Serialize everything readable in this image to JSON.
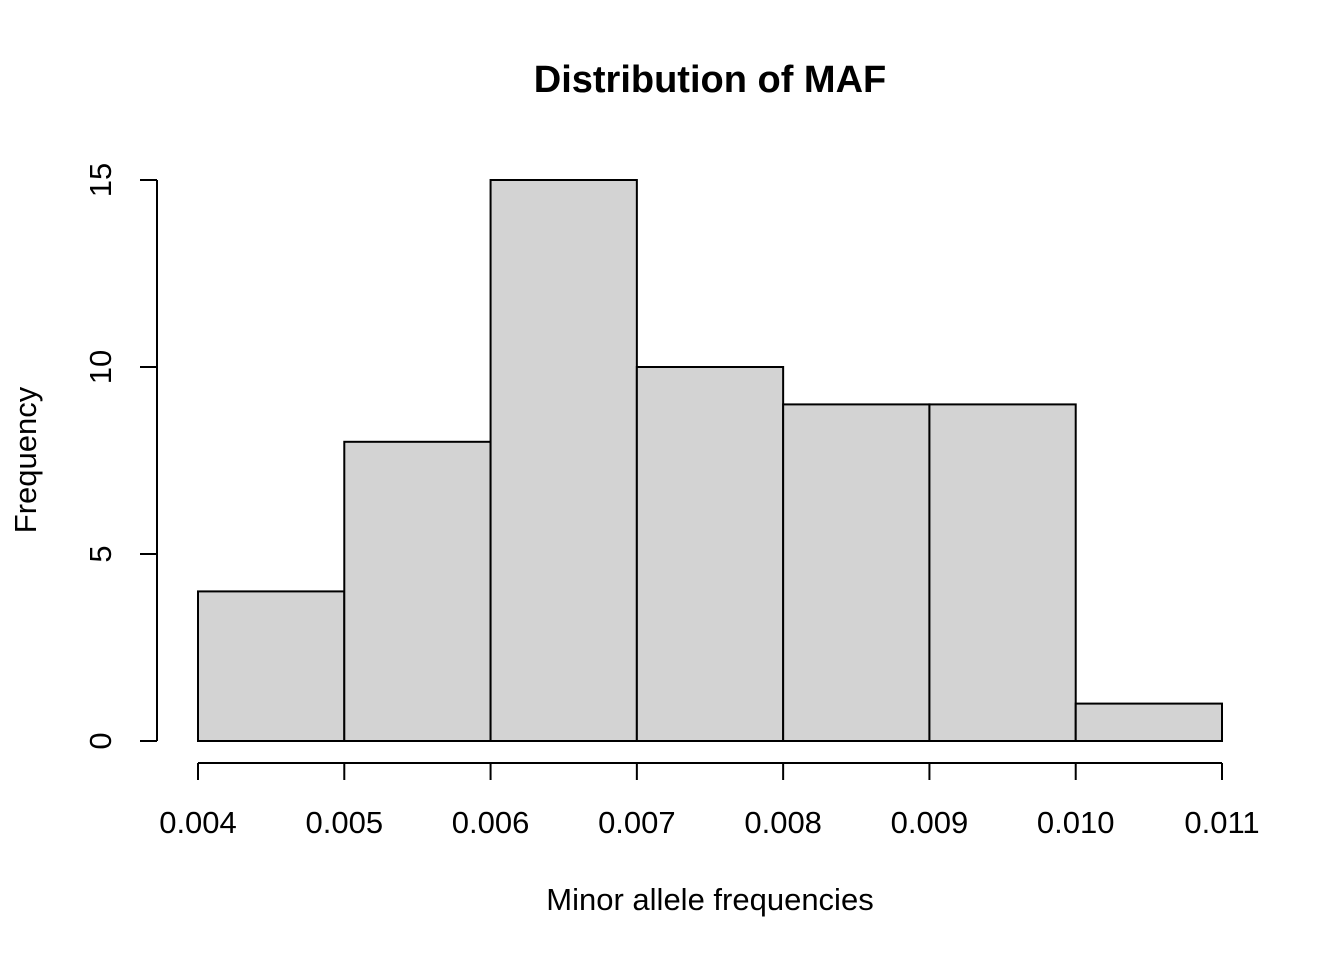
{
  "chart_data": {
    "type": "bar",
    "title": "Distribution of MAF",
    "xlabel": "Minor allele frequencies",
    "ylabel": "Frequency",
    "bins": [
      {
        "from": 0.004,
        "to": 0.005,
        "count": 4
      },
      {
        "from": 0.005,
        "to": 0.006,
        "count": 8
      },
      {
        "from": 0.006,
        "to": 0.007,
        "count": 15
      },
      {
        "from": 0.007,
        "to": 0.008,
        "count": 10
      },
      {
        "from": 0.008,
        "to": 0.009,
        "count": 9
      },
      {
        "from": 0.009,
        "to": 0.01,
        "count": 9
      },
      {
        "from": 0.01,
        "to": 0.011,
        "count": 1
      }
    ],
    "xlim": [
      0.004,
      0.011
    ],
    "ylim": [
      0,
      15
    ],
    "x_ticks": [
      "0.004",
      "0.005",
      "0.006",
      "0.007",
      "0.008",
      "0.009",
      "0.010",
      "0.011"
    ],
    "y_ticks": [
      "0",
      "5",
      "10",
      "15"
    ],
    "bar_fill": "#d3d3d3",
    "bar_stroke": "#000000",
    "grid": false,
    "legend": "none"
  }
}
